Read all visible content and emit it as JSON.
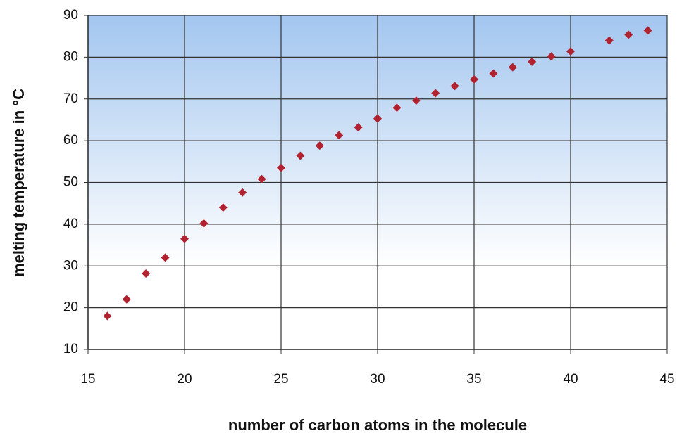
{
  "chart_data": {
    "type": "scatter",
    "xlabel": "number of carbon atoms in the molecule",
    "ylabel": "melting temperature in °C",
    "series": [
      {
        "name": null,
        "color": "#b0222f",
        "x": [
          16,
          17,
          18,
          19,
          20,
          21,
          22,
          23,
          24,
          25,
          26,
          27,
          28,
          29,
          30,
          31,
          32,
          33,
          34,
          35,
          36,
          37,
          38,
          39,
          40,
          42,
          43,
          44
        ],
        "values": [
          18,
          22,
          28.2,
          32,
          36.5,
          40.2,
          44,
          47.6,
          50.8,
          53.5,
          56.4,
          58.8,
          61.3,
          63.2,
          65.3,
          67.9,
          69.6,
          71.4,
          73.1,
          74.7,
          76.1,
          77.6,
          78.9,
          80.2,
          81.4,
          84,
          85.4,
          86.4
        ]
      }
    ],
    "xlim": [
      15,
      45
    ],
    "xticks": [
      15,
      20,
      25,
      30,
      35,
      40,
      45
    ],
    "ylim": [
      10,
      90
    ],
    "yticks": [
      10,
      20,
      30,
      40,
      50,
      60,
      70,
      80,
      90
    ],
    "grid": true
  }
}
